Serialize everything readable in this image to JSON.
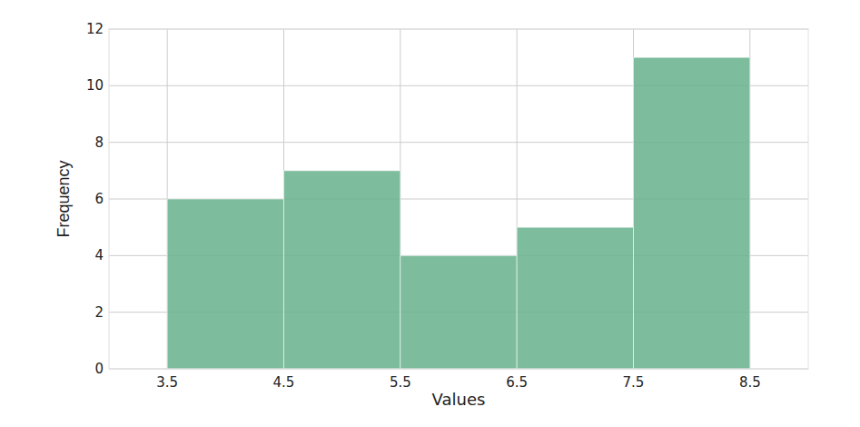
{
  "chart_data": {
    "type": "histogram",
    "bins": [
      3.5,
      4.5,
      5.5,
      6.5,
      7.5,
      8.5
    ],
    "values": [
      6,
      7,
      4,
      5,
      11
    ],
    "color": "#66b28c",
    "xlabel": "Values",
    "ylabel": "Frequency",
    "xlim": [
      3,
      9
    ],
    "ylim": [
      0,
      12
    ],
    "xticks": [
      3.5,
      4.5,
      5.5,
      6.5,
      7.5,
      8.5
    ],
    "yticks": [
      0,
      2,
      4,
      6,
      8,
      10,
      12
    ],
    "grid": true
  }
}
